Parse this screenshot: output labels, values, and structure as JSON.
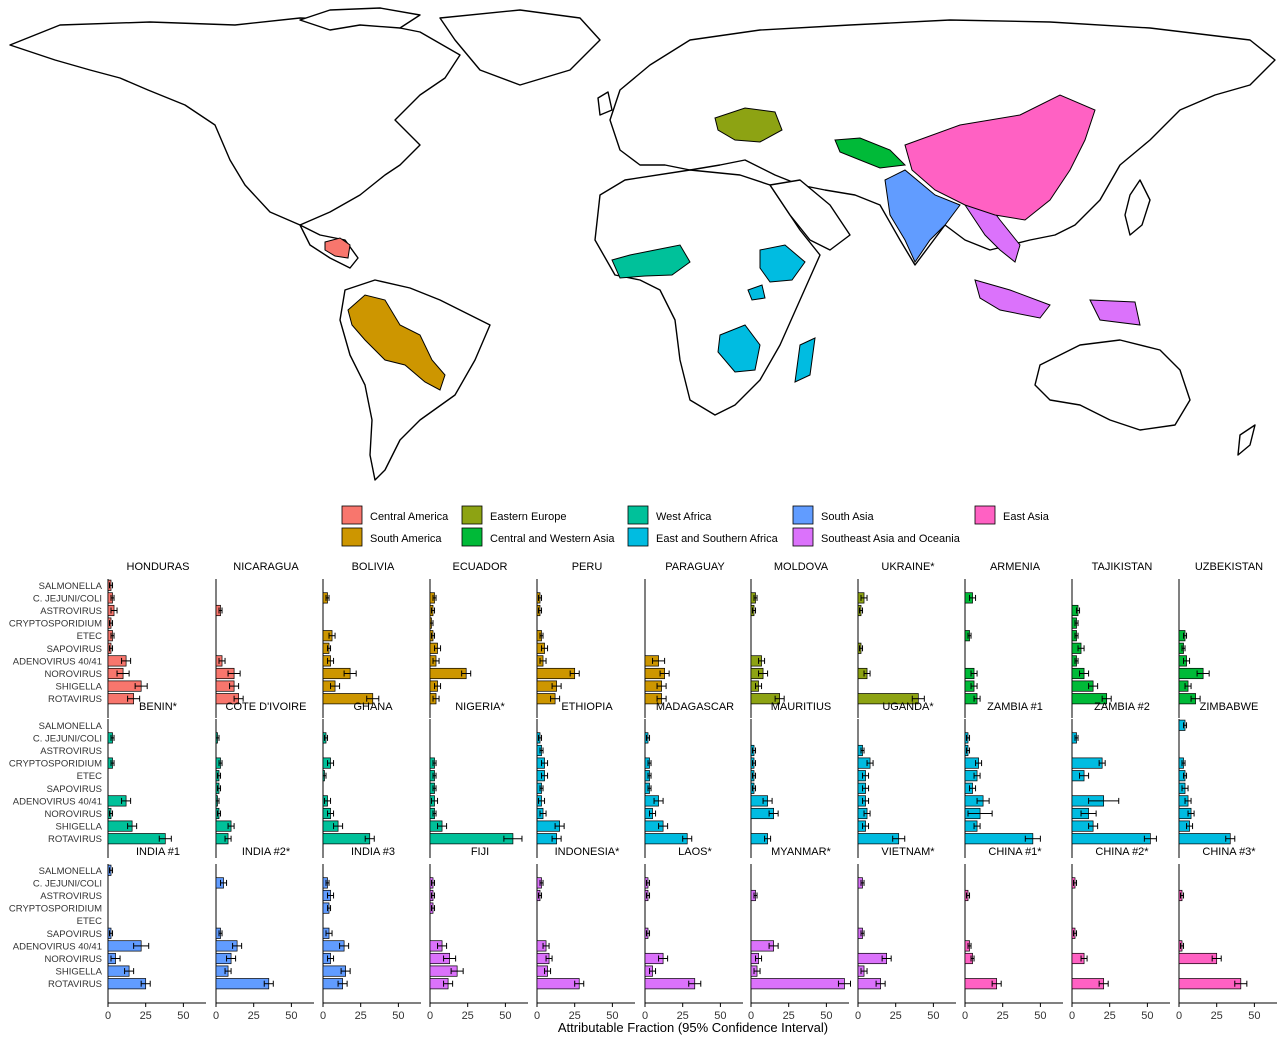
{
  "regions": [
    {
      "name": "Central America",
      "color": "#F8766D"
    },
    {
      "name": "South America",
      "color": "#CD9600"
    },
    {
      "name": "Eastern Europe",
      "color": "#8DA313"
    },
    {
      "name": "Central and Western Asia",
      "color": "#00BA38"
    },
    {
      "name": "West Africa",
      "color": "#00C19A"
    },
    {
      "name": "East and Southern Africa",
      "color": "#00BCE1"
    },
    {
      "name": "South Asia",
      "color": "#619CFF"
    },
    {
      "name": "Southeast Asia and Oceania",
      "color": "#DB72FB"
    },
    {
      "name": "East Asia",
      "color": "#FF61C3"
    }
  ],
  "chart_data": {
    "type": "bar",
    "orientation": "horizontal",
    "categories": [
      "SALMONELLA",
      "C. JEJUNI/COLI",
      "ASTROVIRUS",
      "CRYPTOSPORIDIUM",
      "ETEC",
      "SAPOVIRUS",
      "ADENOVIRUS 40/41",
      "NOROVIRUS",
      "SHIGELLA",
      "ROTAVIRUS"
    ],
    "xlabel": "Attributable Fraction (95% Confidence Interval)",
    "xlim": [
      0,
      65
    ],
    "xticks": [
      "0",
      "25",
      "50"
    ],
    "panels": [
      {
        "name": "HONDURAS",
        "region": "Central America",
        "values": [
          2,
          3,
          4,
          2,
          3,
          2,
          12,
          10,
          22,
          17
        ],
        "err": [
          1,
          1,
          2,
          1,
          1,
          1,
          3,
          4,
          4,
          4
        ]
      },
      {
        "name": "NICARAGUA",
        "region": "Central America",
        "values": [
          0,
          0,
          3,
          0,
          0,
          0,
          4,
          12,
          12,
          15
        ],
        "err": [
          0,
          0,
          1,
          0,
          0,
          0,
          2,
          4,
          3,
          3
        ]
      },
      {
        "name": "BOLIVIA",
        "region": "South America",
        "values": [
          0,
          3,
          0,
          0,
          6,
          4,
          5,
          18,
          8,
          33
        ],
        "err": [
          0,
          1,
          0,
          0,
          2,
          1,
          2,
          4,
          3,
          4
        ]
      },
      {
        "name": "ECUADOR",
        "region": "South America",
        "values": [
          0,
          3,
          2,
          1,
          2,
          5,
          4,
          24,
          5,
          4
        ],
        "err": [
          0,
          1,
          1,
          1,
          1,
          2,
          2,
          3,
          2,
          2
        ]
      },
      {
        "name": "PERU",
        "region": "South America",
        "values": [
          0,
          2,
          2,
          0,
          3,
          5,
          4,
          25,
          13,
          12
        ],
        "err": [
          0,
          1,
          1,
          0,
          1,
          2,
          2,
          3,
          3,
          3
        ]
      },
      {
        "name": "PARAGUAY",
        "region": "South America",
        "values": [
          0,
          0,
          0,
          0,
          0,
          0,
          9,
          13,
          11,
          11
        ],
        "err": [
          0,
          0,
          0,
          0,
          0,
          0,
          4,
          3,
          3,
          3
        ]
      },
      {
        "name": "MOLDOVA",
        "region": "Eastern Europe",
        "values": [
          0,
          3,
          2,
          0,
          0,
          0,
          7,
          8,
          5,
          19
        ],
        "err": [
          0,
          1,
          1,
          0,
          0,
          0,
          2,
          3,
          2,
          3
        ]
      },
      {
        "name": "UKRAINE*",
        "region": "Eastern Europe",
        "values": [
          0,
          4,
          2,
          0,
          0,
          2,
          0,
          6,
          0,
          40
        ],
        "err": [
          0,
          2,
          1,
          0,
          0,
          1,
          0,
          2,
          0,
          4
        ]
      },
      {
        "name": "ARMENIA",
        "region": "Central and Western Asia",
        "values": [
          0,
          5,
          0,
          0,
          3,
          0,
          0,
          6,
          6,
          8
        ],
        "err": [
          0,
          2,
          0,
          0,
          1,
          0,
          0,
          2,
          2,
          2
        ]
      },
      {
        "name": "TAJIKISTAN",
        "region": "Central and Western Asia",
        "values": [
          0,
          0,
          4,
          3,
          3,
          6,
          3,
          8,
          14,
          23
        ],
        "err": [
          0,
          0,
          1,
          1,
          1,
          2,
          1,
          3,
          3,
          3
        ]
      },
      {
        "name": "UZBEKISTAN",
        "region": "Central and Western Asia",
        "values": [
          0,
          0,
          0,
          0,
          4,
          3,
          5,
          16,
          6,
          11
        ],
        "err": [
          0,
          0,
          0,
          0,
          1,
          1,
          2,
          4,
          2,
          3
        ]
      },
      {
        "name": "BENIN*",
        "region": "West Africa",
        "values": [
          0,
          3,
          0,
          3,
          0,
          0,
          12,
          2,
          16,
          38
        ],
        "err": [
          0,
          1,
          0,
          1,
          0,
          0,
          3,
          1,
          3,
          4
        ]
      },
      {
        "name": "COTE D'IVOIRE",
        "region": "West Africa",
        "values": [
          0,
          1,
          0,
          3,
          2,
          2,
          1,
          2,
          10,
          8
        ],
        "err": [
          0,
          1,
          0,
          1,
          1,
          1,
          1,
          1,
          2,
          2
        ]
      },
      {
        "name": "GHANA",
        "region": "West Africa",
        "values": [
          0,
          2,
          0,
          5,
          1,
          0,
          3,
          5,
          10,
          31
        ],
        "err": [
          0,
          1,
          0,
          2,
          1,
          0,
          2,
          2,
          3,
          3
        ]
      },
      {
        "name": "NIGERIA*",
        "region": "West Africa",
        "values": [
          0,
          0,
          0,
          3,
          3,
          3,
          3,
          3,
          8,
          55
        ],
        "err": [
          0,
          0,
          0,
          1,
          1,
          1,
          2,
          1,
          3,
          6
        ]
      },
      {
        "name": "ETHIOPIA",
        "region": "East and Southern Africa",
        "values": [
          0,
          2,
          3,
          5,
          5,
          3,
          3,
          4,
          15,
          13
        ],
        "err": [
          0,
          1,
          1,
          2,
          2,
          1,
          2,
          2,
          3,
          3
        ]
      },
      {
        "name": "MADAGASCAR",
        "region": "East and Southern Africa",
        "values": [
          0,
          2,
          0,
          3,
          3,
          3,
          9,
          5,
          12,
          28
        ],
        "err": [
          0,
          1,
          0,
          1,
          1,
          1,
          3,
          2,
          3,
          3
        ]
      },
      {
        "name": "MAURITIUS",
        "region": "East and Southern Africa",
        "values": [
          0,
          0,
          2,
          2,
          2,
          2,
          11,
          15,
          0,
          11
        ],
        "err": [
          0,
          0,
          1,
          1,
          1,
          1,
          3,
          3,
          0,
          2
        ]
      },
      {
        "name": "UGANDA*",
        "region": "East and Southern Africa",
        "values": [
          0,
          0,
          3,
          8,
          5,
          5,
          5,
          6,
          5,
          27
        ],
        "err": [
          0,
          0,
          1,
          2,
          2,
          2,
          2,
          2,
          2,
          4
        ]
      },
      {
        "name": "ZAMBIA #1",
        "region": "East and Southern Africa",
        "values": [
          0,
          2,
          2,
          9,
          8,
          5,
          12,
          10,
          8,
          45
        ],
        "err": [
          0,
          1,
          1,
          2,
          2,
          2,
          4,
          8,
          2,
          5
        ]
      },
      {
        "name": "ZAMBIA #2",
        "region": "East and Southern Africa",
        "values": [
          0,
          3,
          0,
          20,
          8,
          0,
          21,
          11,
          14,
          52
        ],
        "err": [
          0,
          1,
          0,
          2,
          3,
          0,
          10,
          5,
          3,
          4
        ]
      },
      {
        "name": "ZIMBABWE",
        "region": "East and Southern Africa",
        "values": [
          4,
          0,
          0,
          3,
          4,
          4,
          6,
          8,
          7,
          34
        ],
        "err": [
          1,
          0,
          0,
          1,
          1,
          2,
          2,
          2,
          2,
          3
        ]
      },
      {
        "name": "INDIA #1",
        "region": "South Asia",
        "values": [
          2,
          0,
          0,
          0,
          0,
          2,
          22,
          5,
          14,
          25
        ],
        "err": [
          1,
          0,
          0,
          0,
          0,
          1,
          5,
          3,
          3,
          3
        ]
      },
      {
        "name": "INDIA #2*",
        "region": "South Asia",
        "values": [
          0,
          5,
          0,
          0,
          0,
          3,
          14,
          10,
          8,
          35
        ],
        "err": [
          0,
          2,
          0,
          0,
          0,
          1,
          3,
          3,
          2,
          3
        ]
      },
      {
        "name": "INDIA #3",
        "region": "South Asia",
        "values": [
          0,
          3,
          5,
          4,
          0,
          4,
          14,
          5,
          15,
          13
        ],
        "err": [
          0,
          1,
          2,
          1,
          0,
          2,
          3,
          2,
          3,
          3
        ]
      },
      {
        "name": "FIJI",
        "region": "Southeast Asia and Oceania",
        "values": [
          0,
          2,
          2,
          2,
          0,
          0,
          8,
          13,
          18,
          12
        ],
        "err": [
          0,
          1,
          1,
          1,
          0,
          0,
          3,
          4,
          4,
          3
        ]
      },
      {
        "name": "INDONESIA*",
        "region": "Southeast Asia and Oceania",
        "values": [
          0,
          3,
          2,
          0,
          0,
          0,
          6,
          8,
          7,
          28
        ],
        "err": [
          0,
          1,
          1,
          0,
          0,
          0,
          2,
          2,
          2,
          3
        ]
      },
      {
        "name": "LAOS*",
        "region": "Southeast Asia and Oceania",
        "values": [
          0,
          2,
          2,
          0,
          0,
          2,
          0,
          12,
          5,
          33
        ],
        "err": [
          0,
          1,
          1,
          0,
          0,
          1,
          0,
          3,
          2,
          4
        ]
      },
      {
        "name": "MYANMAR*",
        "region": "Southeast Asia and Oceania",
        "values": [
          0,
          0,
          3,
          0,
          0,
          0,
          15,
          5,
          4,
          62
        ],
        "err": [
          0,
          0,
          1,
          0,
          0,
          0,
          3,
          2,
          2,
          4
        ]
      },
      {
        "name": "VIETNAM*",
        "region": "Southeast Asia and Oceania",
        "values": [
          0,
          3,
          0,
          0,
          0,
          3,
          0,
          19,
          4,
          15
        ],
        "err": [
          0,
          1,
          0,
          0,
          0,
          1,
          0,
          3,
          2,
          3
        ]
      },
      {
        "name": "CHINA #1*",
        "region": "East Asia",
        "values": [
          0,
          0,
          2,
          0,
          0,
          0,
          3,
          5,
          0,
          21
        ],
        "err": [
          0,
          0,
          1,
          0,
          0,
          0,
          1,
          1,
          0,
          3
        ]
      },
      {
        "name": "CHINA #2*",
        "region": "East Asia",
        "values": [
          0,
          2,
          0,
          0,
          0,
          2,
          0,
          8,
          0,
          21
        ],
        "err": [
          0,
          1,
          0,
          0,
          0,
          1,
          0,
          2,
          0,
          3
        ]
      },
      {
        "name": "CHINA #3*",
        "region": "East Asia",
        "values": [
          0,
          0,
          2,
          0,
          0,
          0,
          2,
          25,
          0,
          41
        ],
        "err": [
          0,
          0,
          1,
          0,
          0,
          0,
          1,
          3,
          0,
          4
        ]
      }
    ]
  }
}
